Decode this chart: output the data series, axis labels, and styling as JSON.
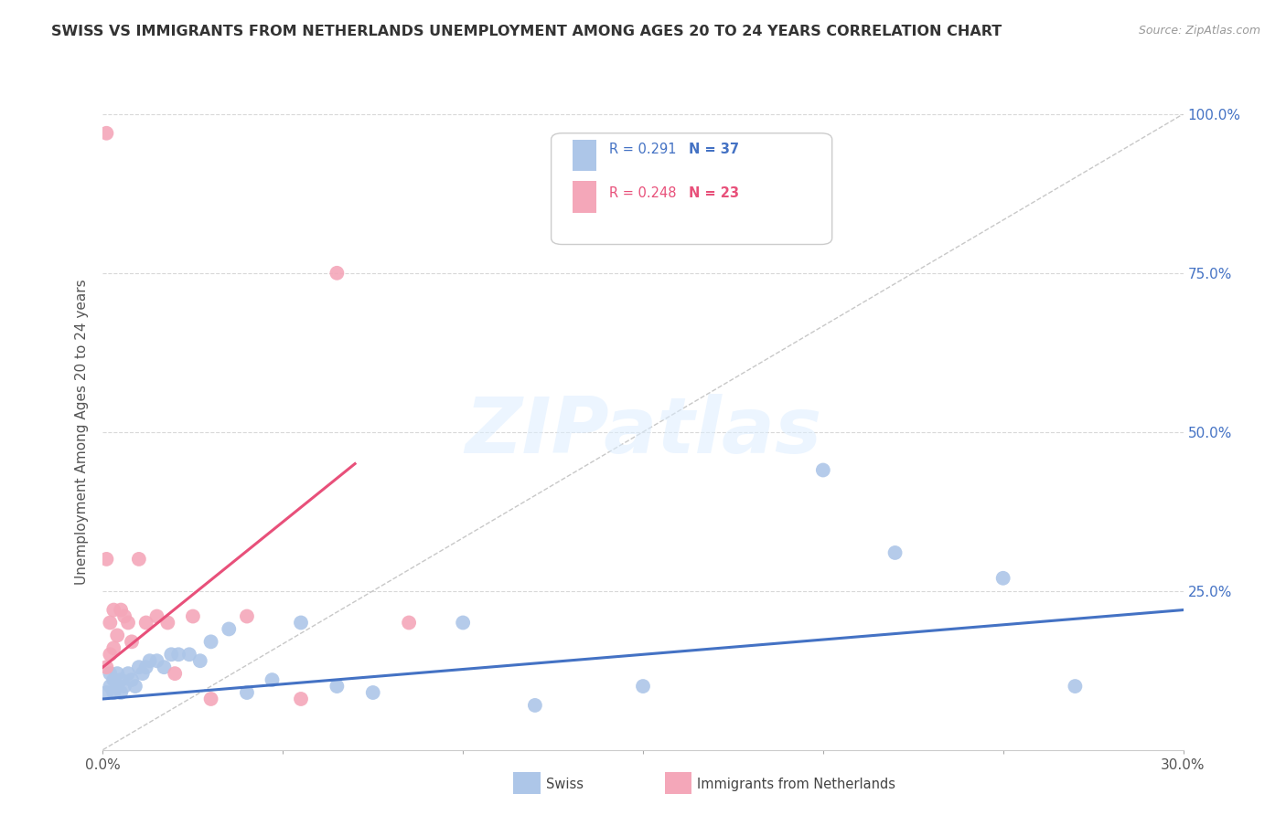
{
  "title": "SWISS VS IMMIGRANTS FROM NETHERLANDS UNEMPLOYMENT AMONG AGES 20 TO 24 YEARS CORRELATION CHART",
  "source": "Source: ZipAtlas.com",
  "ylabel": "Unemployment Among Ages 20 to 24 years",
  "xlim": [
    0.0,
    0.3
  ],
  "ylim": [
    0.0,
    1.0
  ],
  "xticks": [
    0.0,
    0.05,
    0.1,
    0.15,
    0.2,
    0.25,
    0.3
  ],
  "xticklabels": [
    "0.0%",
    "",
    "",
    "",
    "",
    "",
    "30.0%"
  ],
  "yticks": [
    0.0,
    0.25,
    0.5,
    0.75,
    1.0
  ],
  "yticklabels_right": [
    "",
    "25.0%",
    "50.0%",
    "75.0%",
    "100.0%"
  ],
  "swiss_color": "#adc6e8",
  "netherlands_color": "#f4a7b9",
  "swiss_line_color": "#4472c4",
  "netherlands_line_color": "#e8507a",
  "diagonal_color": "#c8c8c8",
  "grid_color": "#d8d8d8",
  "title_color": "#333333",
  "right_axis_color": "#4472c4",
  "legend_R_swiss": "R = 0.291",
  "legend_N_swiss": "N = 37",
  "legend_R_nl": "R = 0.248",
  "legend_N_nl": "N = 23",
  "swiss_x": [
    0.001,
    0.002,
    0.002,
    0.003,
    0.003,
    0.004,
    0.004,
    0.005,
    0.005,
    0.006,
    0.007,
    0.008,
    0.009,
    0.01,
    0.011,
    0.012,
    0.013,
    0.015,
    0.017,
    0.019,
    0.021,
    0.024,
    0.027,
    0.03,
    0.035,
    0.04,
    0.047,
    0.055,
    0.065,
    0.075,
    0.1,
    0.12,
    0.15,
    0.2,
    0.22,
    0.25,
    0.27
  ],
  "swiss_y": [
    0.09,
    0.1,
    0.12,
    0.09,
    0.11,
    0.1,
    0.12,
    0.09,
    0.11,
    0.1,
    0.12,
    0.11,
    0.1,
    0.13,
    0.12,
    0.13,
    0.14,
    0.14,
    0.13,
    0.15,
    0.15,
    0.15,
    0.14,
    0.17,
    0.19,
    0.09,
    0.11,
    0.2,
    0.1,
    0.09,
    0.2,
    0.07,
    0.1,
    0.44,
    0.31,
    0.27,
    0.1
  ],
  "nl_x": [
    0.001,
    0.001,
    0.002,
    0.002,
    0.003,
    0.003,
    0.004,
    0.005,
    0.006,
    0.007,
    0.008,
    0.01,
    0.012,
    0.015,
    0.018,
    0.02,
    0.025,
    0.03,
    0.04,
    0.055,
    0.065,
    0.085,
    0.001
  ],
  "nl_y": [
    0.97,
    0.13,
    0.2,
    0.15,
    0.22,
    0.16,
    0.18,
    0.22,
    0.21,
    0.2,
    0.17,
    0.3,
    0.2,
    0.21,
    0.2,
    0.12,
    0.21,
    0.08,
    0.21,
    0.08,
    0.75,
    0.2,
    0.3
  ],
  "swiss_trend_x": [
    0.0,
    0.3
  ],
  "swiss_trend_y": [
    0.08,
    0.22
  ],
  "nl_trend_x": [
    0.0,
    0.07
  ],
  "nl_trend_y": [
    0.13,
    0.45
  ]
}
